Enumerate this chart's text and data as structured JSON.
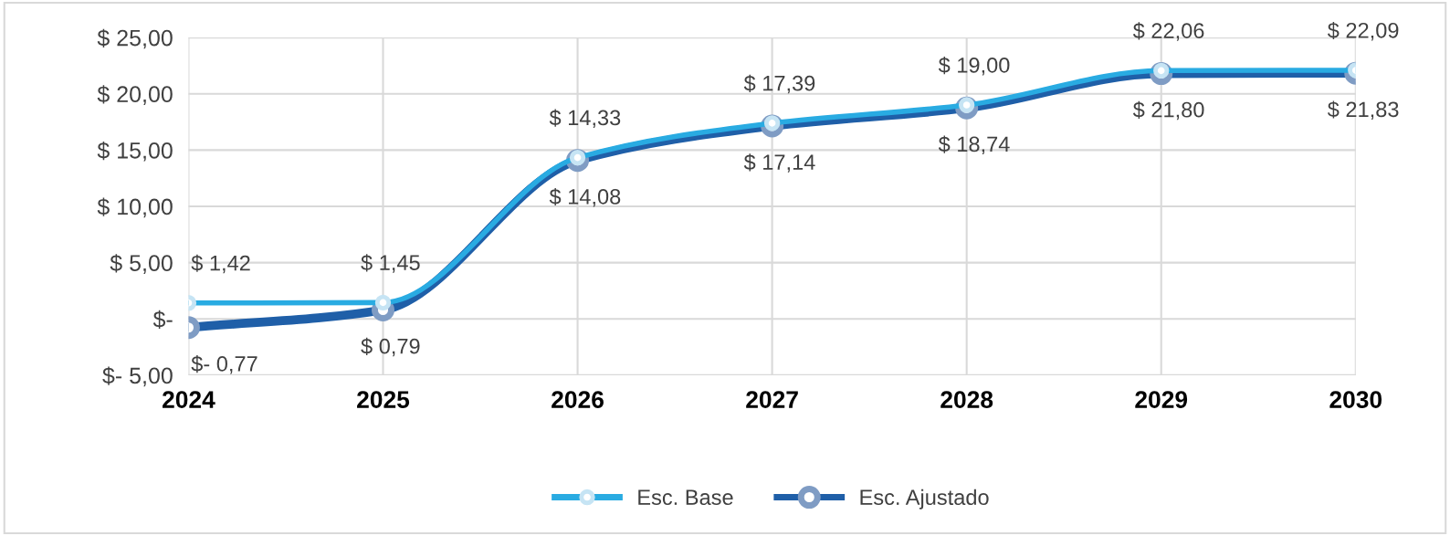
{
  "chart_data": {
    "type": "line",
    "categories": [
      "2024",
      "2025",
      "2026",
      "2027",
      "2028",
      "2029",
      "2030"
    ],
    "series": [
      {
        "name": "Esc. Base",
        "color": "#29abe2",
        "values": [
          1.42,
          1.45,
          14.33,
          17.39,
          19.0,
          22.06,
          22.09
        ],
        "value_labels": [
          "$ 1,42",
          "$ 1,45",
          "$ 14,33",
          "$ 17,39",
          "$ 19,00",
          "$ 22,06",
          "$ 22,09"
        ]
      },
      {
        "name": "Esc. Ajustado",
        "color": "#1f5fa8",
        "values": [
          -0.77,
          0.79,
          14.08,
          17.14,
          18.74,
          21.8,
          21.83
        ],
        "value_labels": [
          "$- 0,77",
          "$ 0,79",
          "$ 14,08",
          "$ 17,14",
          "$ 18,74",
          "$ 21,80",
          "$ 21,83"
        ]
      }
    ],
    "ylim": [
      -5,
      25
    ],
    "yticks": [
      {
        "value": -5,
        "label": "$- 5,00"
      },
      {
        "value": 0,
        "label": "$-"
      },
      {
        "value": 5,
        "label": "$ 5,00"
      },
      {
        "value": 10,
        "label": "$ 10,00"
      },
      {
        "value": 15,
        "label": "$ 15,00"
      },
      {
        "value": 20,
        "label": "$ 20,00"
      },
      {
        "value": 25,
        "label": "$ 25,00"
      }
    ],
    "grid": true,
    "legend": "bottom",
    "marker": "circle",
    "line_style": "solid"
  }
}
